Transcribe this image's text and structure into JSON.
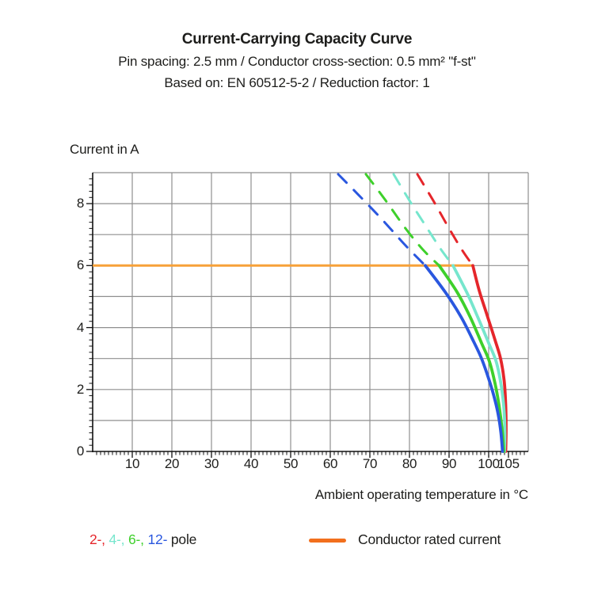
{
  "header": {
    "title": "Current-Carrying Capacity Curve",
    "subtitle1": "Pin spacing: 2.5 mm / Conductor cross-section: 0.5 mm² \"f-st\"",
    "subtitle2": "Based on: EN 60512-5-2 / Reduction factor: 1"
  },
  "chart_data": {
    "type": "line",
    "title": "Current-Carrying Capacity Curve",
    "xlabel": "Ambient operating temperature in °C",
    "ylabel": "Current in A",
    "xlim": [
      0,
      110
    ],
    "ylim": [
      0,
      9
    ],
    "x_major_ticks": [
      10,
      20,
      30,
      40,
      50,
      60,
      70,
      80,
      90,
      100,
      105
    ],
    "y_major_ticks": [
      0,
      2,
      4,
      6,
      8
    ],
    "x_minor_step": 1,
    "y_minor_step": 0.2,
    "x_grid_lines": [
      10,
      20,
      30,
      40,
      50,
      60,
      70,
      80,
      90,
      100
    ],
    "y_grid_lines": [
      1,
      2,
      3,
      4,
      5,
      6,
      7,
      8
    ],
    "grid": true,
    "grid_color": "#8f8f8f",
    "axis_color": "#111111",
    "rated_current": {
      "name": "Conductor rated current",
      "color": "#F7A139",
      "value": 6,
      "x_start": 0,
      "x_end": 96
    },
    "series": [
      {
        "name": "2-pole",
        "color": "#E5262B",
        "dashed": [
          [
            82,
            8.95
          ],
          [
            86,
            8.1
          ],
          [
            90,
            7.2
          ],
          [
            93.3,
            6.5
          ],
          [
            96,
            6
          ]
        ],
        "solid": [
          [
            96,
            6
          ],
          [
            97.6,
            5.2
          ],
          [
            99.6,
            4.4
          ],
          [
            101.6,
            3.6
          ],
          [
            103.0,
            3.0
          ],
          [
            103.9,
            2.3
          ],
          [
            104.3,
            1.5
          ],
          [
            104.4,
            0.7
          ],
          [
            104.3,
            0
          ]
        ]
      },
      {
        "name": "4-pole",
        "color": "#76E6CD",
        "dashed": [
          [
            76,
            8.95
          ],
          [
            80,
            8.1
          ],
          [
            84,
            7.3
          ],
          [
            87.8,
            6.55
          ],
          [
            91,
            6
          ]
        ],
        "solid": [
          [
            91,
            6
          ],
          [
            94.6,
            5.1
          ],
          [
            97.2,
            4.35
          ],
          [
            100,
            3.5
          ],
          [
            101.9,
            2.9
          ],
          [
            103.2,
            2.1
          ],
          [
            103.9,
            1.3
          ],
          [
            104.1,
            0.6
          ],
          [
            104.0,
            0
          ]
        ]
      },
      {
        "name": "6-pole",
        "color": "#3ED02B",
        "dashed": [
          [
            69,
            8.95
          ],
          [
            74,
            8.1
          ],
          [
            79,
            7.2
          ],
          [
            83.5,
            6.5
          ],
          [
            87.5,
            6
          ]
        ],
        "solid": [
          [
            87.5,
            6
          ],
          [
            92,
            5.15
          ],
          [
            95.3,
            4.35
          ],
          [
            98.2,
            3.5
          ],
          [
            100.2,
            2.9
          ],
          [
            101.6,
            2.2
          ],
          [
            102.6,
            1.5
          ],
          [
            103.4,
            0.7
          ],
          [
            103.8,
            0
          ]
        ]
      },
      {
        "name": "12-pole",
        "color": "#2A57DF",
        "dashed": [
          [
            62,
            8.95
          ],
          [
            67,
            8.3
          ],
          [
            73,
            7.5
          ],
          [
            79,
            6.65
          ],
          [
            84,
            6
          ]
        ],
        "solid": [
          [
            84,
            6
          ],
          [
            89,
            5.15
          ],
          [
            93,
            4.35
          ],
          [
            96.2,
            3.55
          ],
          [
            98.2,
            3.0
          ],
          [
            100,
            2.35
          ],
          [
            101.3,
            1.8
          ],
          [
            102.4,
            1.2
          ],
          [
            103.1,
            0.6
          ],
          [
            103.5,
            0
          ]
        ]
      }
    ]
  },
  "legend": {
    "pole_items": [
      {
        "label": "2-,",
        "color": "#E5262B"
      },
      {
        "label": "4-,",
        "color": "#76E6CD"
      },
      {
        "label": "6-,",
        "color": "#3ED02B"
      },
      {
        "label": "12-",
        "color": "#2A57DF"
      }
    ],
    "pole_suffix": "pole",
    "rated_label": "Conductor rated current",
    "rated_color": "#F26F1D"
  }
}
